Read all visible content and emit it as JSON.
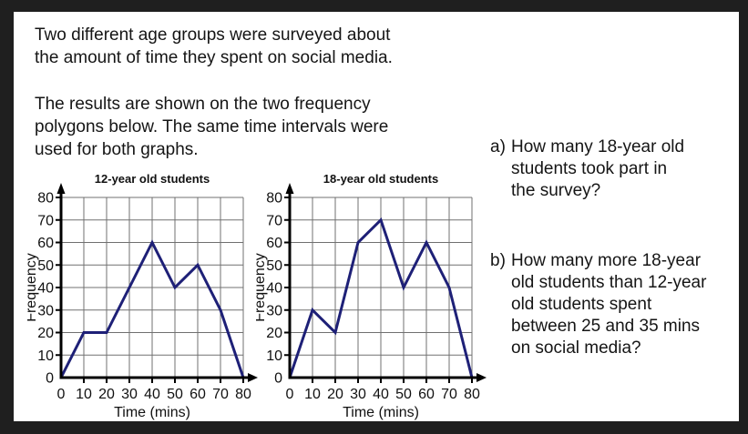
{
  "intro": {
    "p1": "Two different age groups were surveyed about\nthe amount of time they spent on social media.",
    "p2": "The results are shown on the two frequency\npolygons below. The same time intervals were\nused for both graphs."
  },
  "questions": [
    {
      "label": "a)",
      "text": "How many 18-year old\nstudents took part in\nthe survey?"
    },
    {
      "label": "b)",
      "text": "How many more 18-year\nold students than 12-year\nold students spent\nbetween 25 and 35 mins\non social media?"
    }
  ],
  "colors": {
    "page_border": "#1f1f1f",
    "panel": "#ffffff",
    "grid": "#707070",
    "axis": "#000000",
    "line": "#1e2077"
  },
  "chart_data": [
    {
      "type": "line",
      "title": "12-year old students",
      "xlabel": "Time (mins)",
      "ylabel": "Frequency",
      "x": [
        0,
        10,
        20,
        30,
        40,
        50,
        60,
        70,
        80
      ],
      "values": [
        0,
        20,
        20,
        40,
        60,
        40,
        50,
        30,
        0
      ],
      "xlim": [
        0,
        80
      ],
      "ylim": [
        0,
        80
      ],
      "xticks": [
        0,
        10,
        20,
        30,
        40,
        50,
        60,
        70,
        80
      ],
      "yticks": [
        0,
        10,
        20,
        30,
        40,
        50,
        60,
        70,
        80
      ],
      "grid": true,
      "legend": false
    },
    {
      "type": "line",
      "title": "18-year old students",
      "xlabel": "Time (mins)",
      "ylabel": "Frequency",
      "x": [
        0,
        10,
        20,
        30,
        40,
        50,
        60,
        70,
        80
      ],
      "values": [
        0,
        30,
        20,
        60,
        70,
        40,
        60,
        40,
        0
      ],
      "xlim": [
        0,
        80
      ],
      "ylim": [
        0,
        80
      ],
      "xticks": [
        0,
        10,
        20,
        30,
        40,
        50,
        60,
        70,
        80
      ],
      "yticks": [
        0,
        10,
        20,
        30,
        40,
        50,
        60,
        70,
        80
      ],
      "grid": true,
      "legend": false
    }
  ]
}
